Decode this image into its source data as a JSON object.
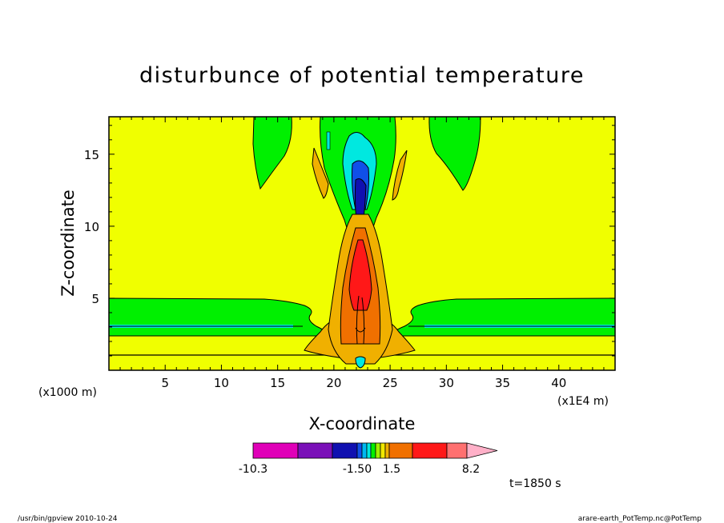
{
  "chart_data": {
    "type": "heatmap",
    "title": "disturbunce of potential temperature",
    "xlabel": "X-coordinate",
    "ylabel": "Z-coordinate",
    "x_unit": "(x1000 m)",
    "y_unit": "(x1E4 m)",
    "x_ticks": [
      5,
      10,
      15,
      20,
      25,
      30,
      35,
      40
    ],
    "y_ticks": [
      5,
      10,
      15
    ],
    "xlim": [
      0,
      45
    ],
    "ylim": [
      0,
      17.6
    ],
    "colorbar_labels": [
      "-10.3",
      "-1.50",
      "1.5",
      "8.2"
    ],
    "colorbar_colors": [
      "#e000b8",
      "#7a10b8",
      "#1010b0",
      "#1050e8",
      "#00b8f0",
      "#00e8e0",
      "#00f000",
      "#a0f000",
      "#f0e800",
      "#f0b000",
      "#f07000",
      "#ff1818",
      "#ff7070",
      "#ffb0c8"
    ],
    "background_value_color": "#f0ff00",
    "time_label": "t=1850 s"
  },
  "footer": {
    "left": "/usr/bin/gpview   2010-10-24",
    "right": "arare-earth_PotTemp.nc@PotTemp"
  }
}
